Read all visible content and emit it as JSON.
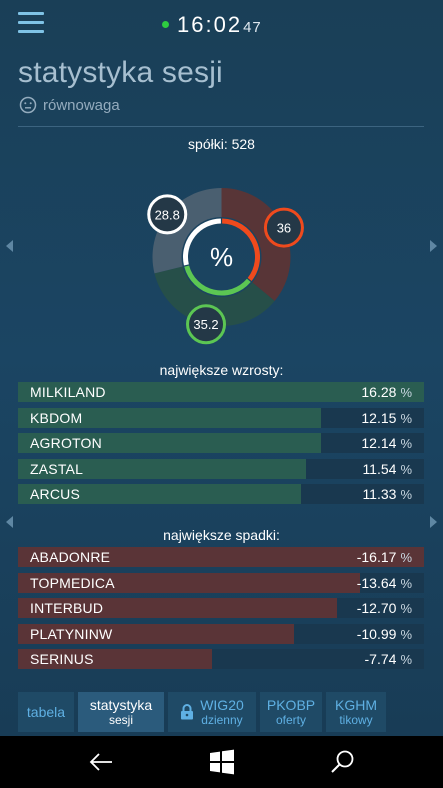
{
  "clock": {
    "hm": "16:02",
    "s": "47"
  },
  "page": {
    "title": "statystyka sesji",
    "mood": "równowaga"
  },
  "summary": {
    "label": "spółki: 528"
  },
  "donut": {
    "center": "%",
    "segments": [
      {
        "name": "up",
        "value": 35.2,
        "label": "35.2",
        "color": "#5cc653",
        "dark": "#264f49"
      },
      {
        "name": "down",
        "value": 36,
        "label": "36",
        "color": "#ef4a1d",
        "dark": "#583537"
      },
      {
        "name": "flat",
        "value": 28.8,
        "label": "28.8",
        "color": "#ffffff",
        "dark": "#4a5f70"
      }
    ]
  },
  "gainers": {
    "label": "największe wzrosty:",
    "max": 16.28,
    "items": [
      {
        "name": "MILKILAND",
        "value": 16.28,
        "text": "16.28"
      },
      {
        "name": "KBDOM",
        "value": 12.15,
        "text": "12.15"
      },
      {
        "name": "AGROTON",
        "value": 12.14,
        "text": "12.14"
      },
      {
        "name": "ZASTAL",
        "value": 11.54,
        "text": "11.54"
      },
      {
        "name": "ARCUS",
        "value": 11.33,
        "text": "11.33"
      }
    ]
  },
  "losers": {
    "label": "największe spadki:",
    "max": 16.17,
    "items": [
      {
        "name": "ABADONRE",
        "value": 16.17,
        "text": "-16.17"
      },
      {
        "name": "TOPMEDICA",
        "value": 13.64,
        "text": "-13.64"
      },
      {
        "name": "INTERBUD",
        "value": 12.7,
        "text": "-12.70"
      },
      {
        "name": "PLATYNINW",
        "value": 10.99,
        "text": "-10.99"
      },
      {
        "name": "SERINUS",
        "value": 7.74,
        "text": "-7.74"
      }
    ]
  },
  "pct_sign": "%",
  "tabs": [
    {
      "label": "tabela",
      "sub": ""
    },
    {
      "label": "statystyka",
      "sub": "sesji"
    },
    {
      "label": "WIG20",
      "sub": "dzienny"
    },
    {
      "label": "PKOBP",
      "sub": "oferty"
    },
    {
      "label": "KGHM",
      "sub": "tikowy"
    }
  ],
  "colors": {
    "accent": "#5fb0e3",
    "up": "#5cc653",
    "down": "#ef4a1d"
  },
  "icons": {
    "menu": "hamburger-icon",
    "mood": "neutral-face-icon",
    "lock": "lock-icon",
    "back": "back-arrow-icon",
    "home": "windows-logo-icon",
    "search": "search-icon"
  }
}
